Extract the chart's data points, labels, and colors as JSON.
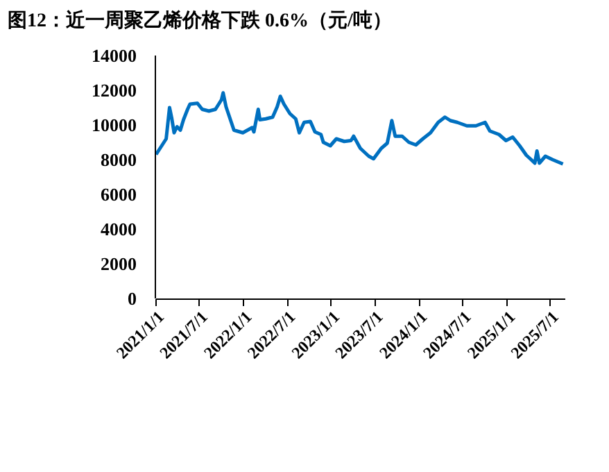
{
  "chart_data": {
    "type": "line",
    "title": "图12：近一周聚乙烯价格下跌 0.6%（元/吨）",
    "x": [
      "2021-01-04",
      "2021-02-01",
      "2021-02-15",
      "2021-03-01",
      "2021-03-10",
      "2021-03-20",
      "2021-04-01",
      "2021-04-15",
      "2021-04-28",
      "2021-05-15",
      "2021-05-25",
      "2021-06-25",
      "2021-07-15",
      "2021-08-12",
      "2021-09-08",
      "2021-10-03",
      "2021-10-10",
      "2021-10-22",
      "2021-11-24",
      "2021-12-31",
      "2022-02-08",
      "2022-02-15",
      "2022-03-05",
      "2022-03-12",
      "2022-04-05",
      "2022-05-04",
      "2022-05-23",
      "2022-06-05",
      "2022-06-20",
      "2022-07-15",
      "2022-08-08",
      "2022-08-23",
      "2022-09-12",
      "2022-10-08",
      "2022-10-27",
      "2022-11-21",
      "2022-12-01",
      "2022-12-30",
      "2023-01-24",
      "2023-02-26",
      "2023-03-26",
      "2023-04-06",
      "2023-05-04",
      "2023-06-08",
      "2023-06-28",
      "2023-07-30",
      "2023-08-24",
      "2023-09-12",
      "2023-09-26",
      "2023-10-25",
      "2023-11-22",
      "2023-12-21",
      "2024-01-19",
      "2024-02-20",
      "2024-03-23",
      "2024-04-20",
      "2024-05-13",
      "2024-06-10",
      "2024-07-20",
      "2024-08-27",
      "2024-10-04",
      "2024-10-24",
      "2024-12-01",
      "2024-12-30",
      "2025-01-27",
      "2025-02-25",
      "2025-03-25",
      "2025-04-10",
      "2025-04-29",
      "2025-05-08",
      "2025-05-18",
      "2025-06-12",
      "2025-07-12",
      "2025-08-24"
    ],
    "series": [
      {
        "color": "#0070c0",
        "values": [
          8300,
          8900,
          9200,
          11000,
          10400,
          9550,
          9900,
          9700,
          10300,
          10900,
          11200,
          11250,
          10900,
          10800,
          10900,
          11450,
          11850,
          11050,
          9700,
          9550,
          9850,
          9600,
          10900,
          10300,
          10350,
          10450,
          11050,
          11650,
          11200,
          10650,
          10350,
          9550,
          10150,
          10200,
          9600,
          9450,
          9000,
          8800,
          9200,
          9050,
          9100,
          9350,
          8650,
          8200,
          8050,
          8650,
          8950,
          10250,
          9350,
          9350,
          9000,
          8850,
          9200,
          9550,
          10150,
          10450,
          10250,
          10150,
          9950,
          9950,
          10150,
          9650,
          9450,
          9100,
          9300,
          8800,
          8250,
          8050,
          7800,
          8500,
          7800,
          8200,
          8000,
          7750
        ]
      }
    ],
    "xlim": [
      "2021-01-01",
      "2025-08-31"
    ],
    "xticks": [
      {
        "value": "2021-01-01",
        "label": "2021/1/1"
      },
      {
        "value": "2021-07-01",
        "label": "2021/7/1"
      },
      {
        "value": "2022-01-01",
        "label": "2022/1/1"
      },
      {
        "value": "2022-07-01",
        "label": "2022/7/1"
      },
      {
        "value": "2023-01-01",
        "label": "2023/1/1"
      },
      {
        "value": "2023-07-01",
        "label": "2023/7/1"
      },
      {
        "value": "2024-01-01",
        "label": "2024/1/1"
      },
      {
        "value": "2024-07-01",
        "label": "2024/7/1"
      },
      {
        "value": "2025-01-01",
        "label": "2025/1/1"
      },
      {
        "value": "2025-07-01",
        "label": "2025/7/1"
      }
    ],
    "ylim": [
      0,
      14000
    ],
    "yticks": [
      0,
      2000,
      4000,
      6000,
      8000,
      10000,
      12000,
      14000
    ],
    "grid": false,
    "marker": "none",
    "line_style": "solid"
  }
}
